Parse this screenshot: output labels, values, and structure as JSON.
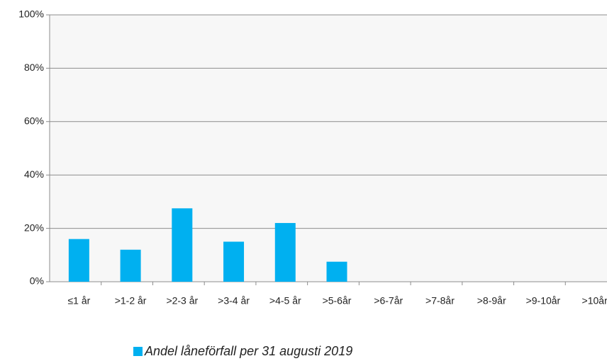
{
  "chart_data": {
    "type": "bar",
    "categories": [
      "≤1 år",
      ">1-2 år",
      ">2-3 år",
      ">3-4 år",
      ">4-5 år",
      ">5-6år",
      ">6-7år",
      ">7-8år",
      ">8-9år",
      ">9-10år",
      ">10år"
    ],
    "series": [
      {
        "name": "Andel låneförfall per 31 augusti 2019",
        "color": "#00b0f0",
        "values": [
          16,
          12,
          27.5,
          15,
          22,
          7.5,
          0,
          0,
          0,
          0,
          0
        ]
      }
    ],
    "ylim": [
      0,
      100
    ],
    "yticks": [
      {
        "value": 0,
        "label": "0%"
      },
      {
        "value": 20,
        "label": "20%"
      },
      {
        "value": 40,
        "label": "40%"
      },
      {
        "value": 60,
        "label": "60%"
      },
      {
        "value": 80,
        "label": "80%"
      },
      {
        "value": 100,
        "label": "100%"
      }
    ],
    "grid": true,
    "legend": "bottom"
  }
}
